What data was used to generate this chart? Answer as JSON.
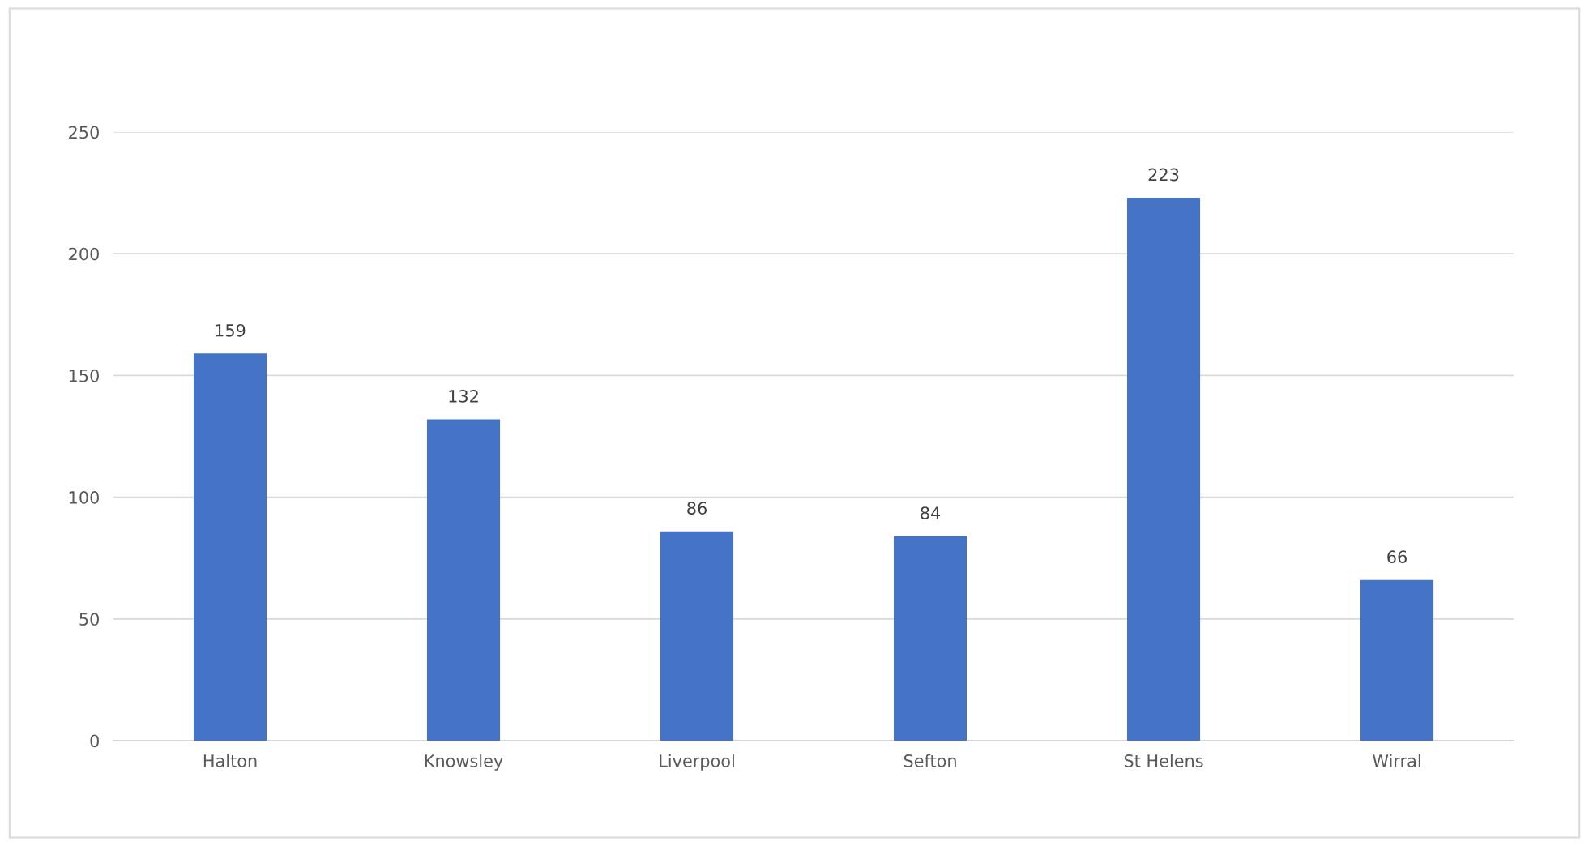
{
  "chart_data": {
    "type": "bar",
    "categories": [
      "Halton",
      "Knowsley",
      "Liverpool",
      "Sefton",
      "St Helens",
      "Wirral"
    ],
    "values": [
      159,
      132,
      86,
      84,
      223,
      66
    ],
    "color": "#4472c4",
    "ylim": [
      0,
      250
    ],
    "yticks": [
      0,
      50,
      100,
      150,
      200,
      250
    ],
    "grid": "y",
    "data_labels": true,
    "legend": false
  }
}
